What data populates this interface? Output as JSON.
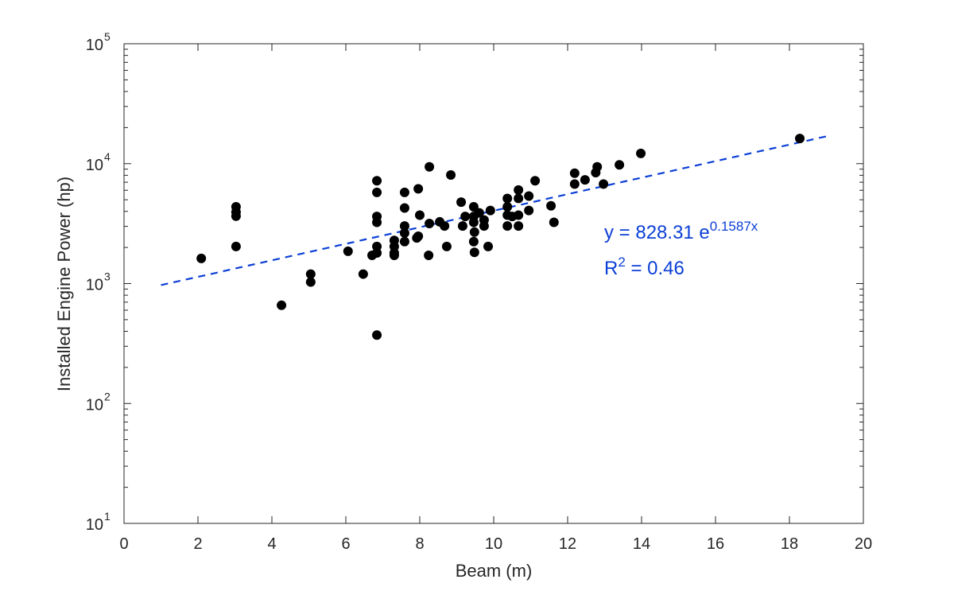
{
  "chart_data": {
    "type": "scatter",
    "xlabel": "Beam (m)",
    "ylabel": "Installed Engine Power (hp)",
    "xlim": [
      0,
      20
    ],
    "ylim": [
      10,
      100000
    ],
    "yscale": "log",
    "xticks": [
      "0",
      "2",
      "4",
      "6",
      "8",
      "10",
      "12",
      "14",
      "16",
      "18",
      "20"
    ],
    "yticks": [
      {
        "base": "10",
        "exp": "1"
      },
      {
        "base": "10",
        "exp": "2"
      },
      {
        "base": "10",
        "exp": "3"
      },
      {
        "base": "10",
        "exp": "4"
      },
      {
        "base": "10",
        "exp": "5"
      }
    ],
    "grid": false,
    "marker_color": "#000000",
    "fit_color": "#0b3fd6",
    "points": [
      [
        2.09,
        1620
      ],
      [
        3.03,
        4370
      ],
      [
        3.03,
        3950
      ],
      [
        3.03,
        3650
      ],
      [
        3.03,
        2040
      ],
      [
        4.26,
        660
      ],
      [
        5.05,
        1200
      ],
      [
        5.05,
        1030
      ],
      [
        6.06,
        1860
      ],
      [
        6.47,
        1200
      ],
      [
        6.71,
        1720
      ],
      [
        6.84,
        7200
      ],
      [
        6.84,
        5760
      ],
      [
        6.84,
        3630
      ],
      [
        6.84,
        3240
      ],
      [
        6.84,
        2040
      ],
      [
        6.84,
        1800
      ],
      [
        6.84,
        372
      ],
      [
        7.31,
        2290
      ],
      [
        7.31,
        2040
      ],
      [
        7.31,
        1800
      ],
      [
        7.31,
        1720
      ],
      [
        7.59,
        5760
      ],
      [
        7.59,
        4270
      ],
      [
        7.59,
        3020
      ],
      [
        7.59,
        2640
      ],
      [
        7.59,
        2240
      ],
      [
        7.96,
        6170
      ],
      [
        8.0,
        3720
      ],
      [
        7.96,
        2480
      ],
      [
        7.92,
        2400
      ],
      [
        8.26,
        9400
      ],
      [
        8.26,
        3170
      ],
      [
        8.24,
        1720
      ],
      [
        8.54,
        3270
      ],
      [
        8.67,
        3020
      ],
      [
        8.73,
        2040
      ],
      [
        8.84,
        8050
      ],
      [
        9.12,
        4780
      ],
      [
        9.23,
        3630
      ],
      [
        9.16,
        3020
      ],
      [
        9.46,
        4370
      ],
      [
        9.46,
        3630
      ],
      [
        9.46,
        3240
      ],
      [
        9.48,
        2690
      ],
      [
        9.46,
        2240
      ],
      [
        9.48,
        1820
      ],
      [
        9.61,
        3890
      ],
      [
        9.74,
        3390
      ],
      [
        9.74,
        3020
      ],
      [
        9.91,
        4070
      ],
      [
        9.85,
        2040
      ],
      [
        10.37,
        5130
      ],
      [
        10.37,
        4370
      ],
      [
        10.37,
        3720
      ],
      [
        10.37,
        3020
      ],
      [
        10.5,
        3630
      ],
      [
        10.67,
        6030
      ],
      [
        10.67,
        5130
      ],
      [
        10.67,
        3720
      ],
      [
        10.67,
        3020
      ],
      [
        10.95,
        5370
      ],
      [
        10.95,
        4070
      ],
      [
        11.12,
        7200
      ],
      [
        11.55,
        4450
      ],
      [
        11.63,
        3240
      ],
      [
        12.19,
        8320
      ],
      [
        12.19,
        6760
      ],
      [
        12.47,
        7320
      ],
      [
        12.8,
        9400
      ],
      [
        12.76,
        8420
      ],
      [
        12.97,
        6760
      ],
      [
        13.4,
        9770
      ],
      [
        13.98,
        12170
      ],
      [
        18.28,
        16200
      ]
    ],
    "fit": {
      "type": "exponential",
      "a": 828.31,
      "b": 0.1587,
      "x_range": [
        1,
        19
      ],
      "style": "dashed",
      "equation_prefix": "y = 828.31 e",
      "equation_exp": "0.1587x",
      "r2_prefix": "R",
      "r2_exp": "2",
      "r2_value": " = 0.46"
    }
  }
}
